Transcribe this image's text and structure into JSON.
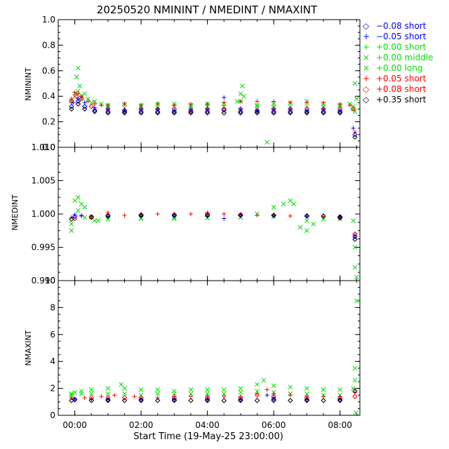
{
  "title": "20250520  NMININT  /  NMEDINT  /  NMAXINT",
  "xlabel": "Start Time (19-May-25 23:00:00)",
  "colors": {
    "black": "#000000",
    "blue": "#0000ff",
    "green": "#00e000",
    "red": "#ff0000"
  },
  "legend": [
    {
      "symbol": "◇",
      "label": "−0.08  short",
      "color": "#0000ff"
    },
    {
      "symbol": "+",
      "label": "−0.05  short",
      "color": "#0000ff"
    },
    {
      "symbol": "+",
      "label": "+0.00  short",
      "color": "#00e000"
    },
    {
      "symbol": "×",
      "label": "+0.00  middle",
      "color": "#00e000"
    },
    {
      "symbol": "×",
      "label": "+0.00  long",
      "color": "#00e000"
    },
    {
      "symbol": "+",
      "label": "+0.05  short",
      "color": "#ff0000"
    },
    {
      "symbol": "◇",
      "label": "+0.08  short",
      "color": "#ff0000"
    },
    {
      "symbol": "◇",
      "label": "+0.35  short",
      "color": "#000000"
    }
  ],
  "chart_data": [
    {
      "type": "scatter",
      "name": "nminint",
      "ylabel": "NMININT",
      "xlim": [
        -0.5,
        8.6
      ],
      "ylim": [
        0.0,
        1.0
      ],
      "yticks": [
        0.0,
        0.2,
        0.4,
        0.6,
        0.8,
        1.0
      ],
      "ytick_labels": [
        "0.0",
        "0.2",
        "0.4",
        "0.6",
        "0.8",
        "1.0"
      ],
      "xticks": [
        0,
        2,
        4,
        6,
        8
      ],
      "xtick_labels": [
        "00:00",
        "02:00",
        "04:00",
        "06:00",
        "08:00"
      ],
      "series": [
        {
          "name": "+0.00 long",
          "color": "#00e000",
          "marker": "x",
          "x": [
            0.0,
            0.05,
            0.1,
            0.15,
            0.2,
            0.3,
            0.4,
            0.6,
            0.8,
            1.0,
            1.5,
            2.0,
            2.5,
            3.0,
            3.5,
            4.0,
            4.5,
            4.9,
            5.0,
            5.05,
            5.1,
            5.5,
            5.8,
            6.0,
            6.5,
            7.0,
            7.5,
            8.0,
            8.3,
            8.4,
            8.45,
            8.5
          ],
          "y": [
            0.42,
            0.55,
            0.62,
            0.48,
            0.4,
            0.42,
            0.38,
            0.36,
            0.34,
            0.33,
            0.34,
            0.33,
            0.34,
            0.34,
            0.33,
            0.34,
            0.34,
            0.36,
            0.42,
            0.48,
            0.4,
            0.33,
            0.04,
            0.34,
            0.35,
            0.36,
            0.34,
            0.33,
            0.34,
            0.3,
            0.5,
            0.38
          ]
        },
        {
          "name": "+0.00 middle",
          "color": "#00e000",
          "marker": "x",
          "x": [
            -0.1,
            0.0,
            0.1,
            0.2,
            0.5,
            1.0,
            1.5,
            2.0,
            2.5,
            3.0,
            3.5,
            4.0,
            4.5,
            5.0,
            5.5,
            6.0,
            6.5,
            7.0,
            7.5,
            8.0,
            8.4,
            8.45
          ],
          "y": [
            0.36,
            0.4,
            0.44,
            0.38,
            0.35,
            0.32,
            0.31,
            0.32,
            0.31,
            0.32,
            0.32,
            0.32,
            0.32,
            0.36,
            0.32,
            0.32,
            0.32,
            0.32,
            0.32,
            0.32,
            0.32,
            0.28
          ]
        },
        {
          "name": "+0.05 short",
          "color": "#ff0000",
          "marker": "+",
          "x": [
            -0.1,
            0.0,
            0.1,
            0.2,
            0.4,
            0.6,
            0.8,
            1.0,
            1.5,
            2.0,
            2.5,
            3.0,
            3.5,
            4.0,
            4.5,
            5.0,
            5.5,
            6.0,
            6.5,
            7.0,
            7.5,
            8.0,
            8.3,
            8.45
          ],
          "y": [
            0.38,
            0.43,
            0.42,
            0.4,
            0.36,
            0.34,
            0.33,
            0.33,
            0.34,
            0.33,
            0.34,
            0.33,
            0.34,
            0.34,
            0.35,
            0.36,
            0.36,
            0.36,
            0.35,
            0.35,
            0.35,
            0.34,
            0.33,
            0.12
          ]
        },
        {
          "name": "+0.08 short",
          "color": "#ff0000",
          "marker": "diamond",
          "x": [
            -0.1,
            0.05,
            0.2,
            0.5,
            1.0,
            1.5,
            2.0,
            2.5,
            3.0,
            3.5,
            4.0,
            4.5,
            5.0,
            5.5,
            6.0,
            6.5,
            7.0,
            7.5,
            8.0,
            8.4
          ],
          "y": [
            0.36,
            0.4,
            0.38,
            0.32,
            0.3,
            0.29,
            0.3,
            0.3,
            0.3,
            0.29,
            0.3,
            0.3,
            0.3,
            0.29,
            0.3,
            0.3,
            0.3,
            0.3,
            0.3,
            0.3
          ]
        },
        {
          "name": "-0.05 short",
          "color": "#0000ff",
          "marker": "+",
          "x": [
            -0.05,
            0.1,
            0.3,
            0.6,
            1.0,
            1.5,
            2.0,
            2.5,
            3.0,
            3.5,
            4.0,
            4.5,
            5.0,
            5.5,
            6.0,
            6.5,
            7.0,
            7.5,
            8.0,
            8.4
          ],
          "y": [
            0.35,
            0.38,
            0.35,
            0.31,
            0.3,
            0.29,
            0.3,
            0.3,
            0.29,
            0.3,
            0.3,
            0.39,
            0.3,
            0.29,
            0.3,
            0.3,
            0.29,
            0.3,
            0.29,
            0.15
          ]
        },
        {
          "name": "-0.08 short",
          "color": "#0000ff",
          "marker": "diamond",
          "x": [
            -0.1,
            0.1,
            0.3,
            0.6,
            1.0,
            1.5,
            2.0,
            2.5,
            3.0,
            3.5,
            4.0,
            4.5,
            5.0,
            5.5,
            6.0,
            6.5,
            7.0,
            7.5,
            8.0,
            8.45
          ],
          "y": [
            0.32,
            0.36,
            0.32,
            0.29,
            0.28,
            0.28,
            0.28,
            0.28,
            0.28,
            0.28,
            0.28,
            0.29,
            0.28,
            0.28,
            0.28,
            0.28,
            0.28,
            0.28,
            0.28,
            0.1
          ]
        },
        {
          "name": "+0.35 short",
          "color": "#000000",
          "marker": "diamond",
          "x": [
            -0.1,
            0.1,
            0.3,
            0.6,
            1.0,
            1.5,
            2.0,
            2.5,
            3.0,
            3.5,
            4.0,
            4.5,
            5.0,
            5.5,
            6.0,
            6.5,
            7.0,
            7.5,
            8.0,
            8.45
          ],
          "y": [
            0.3,
            0.34,
            0.3,
            0.28,
            0.27,
            0.27,
            0.27,
            0.27,
            0.27,
            0.27,
            0.27,
            0.27,
            0.27,
            0.27,
            0.27,
            0.27,
            0.27,
            0.27,
            0.27,
            0.08
          ]
        }
      ]
    },
    {
      "type": "scatter",
      "name": "nmedint",
      "ylabel": "NMEDINT",
      "xlim": [
        -0.5,
        8.6
      ],
      "ylim": [
        0.99,
        1.01
      ],
      "yticks": [
        0.99,
        0.995,
        1.0,
        1.005,
        1.01
      ],
      "ytick_labels": [
        "0.990",
        "0.995",
        "1.000",
        "1.005",
        "1.010"
      ],
      "xticks": [
        0,
        2,
        4,
        6,
        8
      ],
      "xtick_labels": [
        "00:00",
        "02:00",
        "04:00",
        "06:00",
        "08:00"
      ],
      "series": [
        {
          "name": "+0.00 long",
          "color": "#00e000",
          "marker": "x",
          "x": [
            -0.1,
            0.0,
            0.1,
            0.2,
            0.3,
            0.5,
            0.7,
            1.0,
            2.0,
            3.0,
            4.0,
            5.0,
            5.5,
            6.0,
            6.3,
            6.5,
            6.6,
            6.8,
            7.0,
            7.2,
            7.5,
            8.0,
            8.4,
            8.45,
            8.5
          ],
          "y": [
            0.9975,
            1.002,
            1.0025,
            1.0015,
            1.001,
            0.9995,
            0.999,
            0.9992,
            0.9993,
            0.9993,
            0.9994,
            0.9995,
            1.0,
            1.001,
            1.0015,
            1.002,
            1.0015,
            0.998,
            0.9975,
            0.9985,
            0.9992,
            0.9993,
            0.999,
            0.992,
            0.9905
          ]
        },
        {
          "name": "+0.00 middle",
          "color": "#00e000",
          "marker": "x",
          "x": [
            -0.1,
            0.1,
            0.3,
            0.6,
            1.0,
            2.0,
            3.0,
            4.0,
            5.0,
            6.0,
            7.0,
            8.0,
            8.45
          ],
          "y": [
            0.9985,
            1.0005,
            0.9995,
            0.999,
            0.9992,
            0.9994,
            0.9995,
            0.9994,
            0.9995,
            0.9996,
            0.999,
            0.9993,
            0.995
          ]
        },
        {
          "name": "+0.05 short",
          "color": "#ff0000",
          "marker": "+",
          "x": [
            -0.1,
            0.2,
            0.5,
            1.0,
            1.5,
            2.0,
            2.5,
            3.0,
            3.5,
            4.0,
            4.5,
            5.0,
            5.5,
            6.0,
            6.5,
            7.0,
            7.5,
            8.0,
            8.45
          ],
          "y": [
            0.9995,
            0.9998,
            0.9996,
            1.0002,
            0.9998,
            0.9999,
            1.0,
            0.9999,
            1.0,
            1.0002,
            1.0,
            0.9999,
            0.9998,
            0.9998,
            0.9997,
            0.9998,
            0.9996,
            0.9993,
            0.9965
          ]
        },
        {
          "name": "+0.08 short",
          "color": "#ff0000",
          "marker": "diamond",
          "x": [
            0.0,
            0.5,
            1.0,
            2.0,
            3.0,
            4.0,
            5.0,
            6.0,
            7.0,
            8.0,
            8.45
          ],
          "y": [
            0.9993,
            0.9996,
            0.9998,
            0.9999,
            0.9999,
            1.0,
            0.9999,
            0.9998,
            0.9997,
            0.9994,
            0.997
          ]
        },
        {
          "name": "-0.05 short",
          "color": "#0000ff",
          "marker": "+",
          "x": [
            0.0,
            0.2,
            1.0,
            2.0,
            3.0,
            4.0,
            4.5,
            5.0,
            6.0,
            7.0,
            8.0,
            8.45
          ],
          "y": [
            0.9999,
            0.9997,
            0.9996,
            0.9997,
            0.9997,
            0.9996,
            0.9993,
            0.9997,
            0.9997,
            0.9996,
            0.9995,
            0.9968
          ]
        },
        {
          "name": "-0.08 short",
          "color": "#0000ff",
          "marker": "diamond",
          "x": [
            0.0,
            1.0,
            2.0,
            3.0,
            4.0,
            5.0,
            6.0,
            7.0,
            8.0,
            8.45
          ],
          "y": [
            0.9996,
            0.9997,
            0.9998,
            0.9998,
            0.9998,
            0.9998,
            0.9998,
            0.9997,
            0.9996,
            0.9966
          ]
        },
        {
          "name": "+0.35 short",
          "color": "#000000",
          "marker": "diamond",
          "x": [
            -0.1,
            0.5,
            1.0,
            2.0,
            3.0,
            4.0,
            5.0,
            6.0,
            7.0,
            7.5,
            8.0,
            8.45
          ],
          "y": [
            0.9992,
            0.9995,
            0.9997,
            0.9998,
            0.9998,
            0.9998,
            0.9998,
            0.9998,
            0.9997,
            0.9997,
            0.9995,
            0.9962
          ]
        }
      ]
    },
    {
      "type": "scatter",
      "name": "nmaxint",
      "ylabel": "NMAXINT",
      "xlim": [
        -0.5,
        8.6
      ],
      "ylim": [
        0,
        10
      ],
      "yticks": [
        0,
        2,
        4,
        6,
        8,
        10
      ],
      "ytick_labels": [
        "0",
        "2",
        "4",
        "6",
        "8",
        "10"
      ],
      "xticks": [
        0,
        2,
        4,
        6,
        8
      ],
      "xtick_labels": [
        "00:00",
        "02:00",
        "04:00",
        "06:00",
        "08:00"
      ],
      "series": [
        {
          "name": "+0.00 long",
          "color": "#00e000",
          "marker": "x",
          "x": [
            -0.1,
            0.0,
            0.2,
            0.5,
            1.0,
            1.4,
            1.5,
            2.0,
            2.5,
            3.0,
            3.5,
            4.0,
            4.5,
            5.0,
            5.5,
            5.7,
            6.0,
            6.5,
            7.0,
            7.5,
            8.0,
            8.4,
            8.45,
            8.5,
            8.48
          ],
          "y": [
            1.6,
            1.7,
            1.8,
            1.9,
            2.0,
            2.3,
            2.0,
            1.9,
            1.9,
            1.8,
            1.9,
            1.9,
            1.9,
            2.0,
            2.3,
            2.6,
            2.2,
            2.1,
            2.0,
            1.9,
            1.9,
            2.0,
            3.5,
            8.5,
            0.2
          ]
        },
        {
          "name": "+0.00 middle",
          "color": "#00e000",
          "marker": "x",
          "x": [
            -0.1,
            0.2,
            0.5,
            1.0,
            1.5,
            2.0,
            2.5,
            3.0,
            3.5,
            4.0,
            4.5,
            5.0,
            5.5,
            6.0,
            6.5,
            7.0,
            7.5,
            8.0,
            8.45
          ],
          "y": [
            1.5,
            1.6,
            1.6,
            1.6,
            1.6,
            1.5,
            1.6,
            1.6,
            1.6,
            1.6,
            1.6,
            1.7,
            1.8,
            1.7,
            1.6,
            1.6,
            1.5,
            1.5,
            2.6
          ]
        },
        {
          "name": "+0.05 short",
          "color": "#ff0000",
          "marker": "+",
          "x": [
            -0.1,
            0.3,
            0.8,
            1.2,
            1.8,
            2.5,
            3.0,
            3.5,
            4.0,
            4.5,
            5.0,
            5.5,
            5.8,
            6.0,
            6.5,
            7.0,
            7.5,
            8.0,
            8.45
          ],
          "y": [
            1.3,
            1.3,
            1.4,
            1.5,
            1.4,
            1.3,
            1.4,
            1.4,
            1.4,
            1.4,
            1.4,
            1.6,
            1.9,
            1.6,
            1.5,
            1.4,
            1.4,
            1.4,
            1.7
          ]
        },
        {
          "name": "+0.08 short",
          "color": "#ff0000",
          "marker": "diamond",
          "x": [
            0.0,
            0.5,
            1.0,
            1.5,
            2.0,
            3.0,
            4.0,
            5.0,
            5.5,
            6.0,
            7.0,
            8.0,
            8.45
          ],
          "y": [
            1.2,
            1.3,
            1.3,
            1.3,
            1.3,
            1.3,
            1.3,
            1.3,
            1.5,
            1.4,
            1.3,
            1.3,
            1.4
          ]
        },
        {
          "name": "-0.05 short",
          "color": "#0000ff",
          "marker": "+",
          "x": [
            0.0,
            0.5,
            1.0,
            2.0,
            3.0,
            4.0,
            5.0,
            5.8,
            6.0,
            7.0,
            8.0
          ],
          "y": [
            1.2,
            1.2,
            1.2,
            1.2,
            1.2,
            1.2,
            1.2,
            1.5,
            1.3,
            1.2,
            1.2
          ]
        },
        {
          "name": "-0.08 short",
          "color": "#0000ff",
          "marker": "diamond",
          "x": [
            0.0,
            1.0,
            2.0,
            3.0,
            4.0,
            5.0,
            6.0,
            7.0,
            8.0
          ],
          "y": [
            1.15,
            1.15,
            1.15,
            1.15,
            1.15,
            1.15,
            1.2,
            1.15,
            1.15
          ]
        },
        {
          "name": "+0.35 short",
          "color": "#000000",
          "marker": "diamond",
          "x": [
            -0.1,
            0.5,
            1.0,
            1.5,
            2.0,
            2.5,
            3.0,
            3.5,
            4.0,
            4.5,
            5.0,
            5.5,
            6.0,
            6.5,
            7.0,
            7.5,
            8.0,
            8.45
          ],
          "y": [
            1.1,
            1.1,
            1.1,
            1.1,
            1.1,
            1.1,
            1.1,
            1.1,
            1.1,
            1.1,
            1.1,
            1.1,
            1.1,
            1.1,
            1.1,
            1.1,
            1.1,
            1.8
          ]
        }
      ]
    }
  ]
}
